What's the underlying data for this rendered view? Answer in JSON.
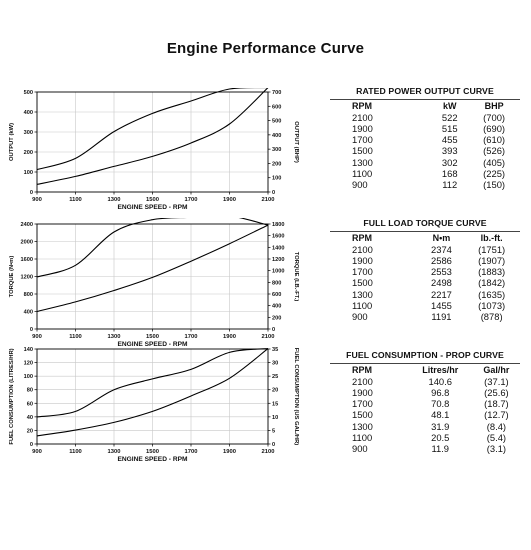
{
  "title": "Engine Performance Curve",
  "chart_data": [
    {
      "type": "line",
      "name": "output",
      "x": [
        900,
        1100,
        1300,
        1500,
        1700,
        1900,
        2100
      ],
      "xticks": [
        900,
        1100,
        1300,
        1500,
        1700,
        1900,
        2100
      ],
      "xlim": [
        900,
        2100
      ],
      "xlabel": "ENGINE SPEED - RPM",
      "ylabel": "OUTPUT (kW)",
      "ylim": [
        0,
        500
      ],
      "yticks": [
        0,
        100,
        200,
        300,
        400,
        500
      ],
      "ylabel_right": "OUTPUT (BHP)",
      "ylim_right": [
        0,
        700
      ],
      "yticks_right": [
        0,
        100,
        200,
        300,
        400,
        500,
        600,
        700
      ],
      "grid": true,
      "series": [
        {
          "values": [
            112,
            168,
            302,
            393,
            455,
            515,
            522
          ]
        },
        {
          "values": [
            38,
            78,
            128,
            178,
            245,
            340,
            522
          ]
        }
      ]
    },
    {
      "type": "line",
      "name": "torque",
      "x": [
        900,
        1100,
        1300,
        1500,
        1700,
        1900,
        2100
      ],
      "xticks": [
        900,
        1100,
        1300,
        1500,
        1700,
        1900,
        2100
      ],
      "xlim": [
        900,
        2100
      ],
      "xlabel": "ENGINE SPEED - RPM",
      "ylabel": "TORQUE (N•m)",
      "ylim": [
        0,
        2400
      ],
      "yticks": [
        0,
        400,
        800,
        1200,
        1600,
        2000,
        2400
      ],
      "ylabel_right": "TORQUE (LB.-FT.)",
      "ylim_right": [
        0,
        1800
      ],
      "yticks_right": [
        0,
        200,
        400,
        600,
        800,
        1000,
        1200,
        1400,
        1600,
        1800
      ],
      "grid": true,
      "series": [
        {
          "values": [
            1191,
            1455,
            2217,
            2498,
            2553,
            2586,
            2374
          ]
        },
        {
          "values": [
            400,
            620,
            880,
            1180,
            1550,
            1950,
            2374
          ]
        }
      ]
    },
    {
      "type": "line",
      "name": "fuel",
      "x": [
        900,
        1100,
        1300,
        1500,
        1700,
        1900,
        2100
      ],
      "xticks": [
        900,
        1100,
        1300,
        1500,
        1700,
        1900,
        2100
      ],
      "xlim": [
        900,
        2100
      ],
      "xlabel": "ENGINE SPEED - RPM",
      "ylabel": "FUEL CONSUMPTION (LITRES/HR)",
      "ylim": [
        0,
        140
      ],
      "yticks": [
        0,
        20,
        40,
        60,
        80,
        100,
        120,
        140
      ],
      "ylabel_right": "FUEL CONSUMPTION (US GAL/HR)",
      "ylim_right": [
        0,
        35
      ],
      "yticks_right": [
        0,
        5,
        10,
        15,
        20,
        25,
        30,
        35
      ],
      "grid": true,
      "series": [
        {
          "values": [
            40,
            48,
            80,
            96,
            110,
            135,
            140.6
          ]
        },
        {
          "values": [
            11.9,
            20.5,
            31.9,
            48.1,
            70.8,
            96.8,
            140.6
          ]
        }
      ]
    }
  ],
  "tables": [
    {
      "title": "RATED POWER OUTPUT CURVE",
      "headers": [
        "RPM",
        "kW",
        "BHP"
      ],
      "rows": [
        [
          "2100",
          "522",
          "(700)"
        ],
        [
          "1900",
          "515",
          "(690)"
        ],
        [
          "1700",
          "455",
          "(610)"
        ],
        [
          "1500",
          "393",
          "(526)"
        ],
        [
          "1300",
          "302",
          "(405)"
        ],
        [
          "1100",
          "168",
          "(225)"
        ],
        [
          "900",
          "112",
          "(150)"
        ]
      ]
    },
    {
      "title": "FULL LOAD TORQUE CURVE",
      "headers": [
        "RPM",
        "N•m",
        "lb.-ft."
      ],
      "rows": [
        [
          "2100",
          "2374",
          "(1751)"
        ],
        [
          "1900",
          "2586",
          "(1907)"
        ],
        [
          "1700",
          "2553",
          "(1883)"
        ],
        [
          "1500",
          "2498",
          "(1842)"
        ],
        [
          "1300",
          "2217",
          "(1635)"
        ],
        [
          "1100",
          "1455",
          "(1073)"
        ],
        [
          "900",
          "1191",
          "(878)"
        ]
      ]
    },
    {
      "title": "FUEL CONSUMPTION - PROP CURVE",
      "headers": [
        "RPM",
        "Litres/hr",
        "Gal/hr"
      ],
      "rows": [
        [
          "2100",
          "140.6",
          "(37.1)"
        ],
        [
          "1900",
          "96.8",
          "(25.6)"
        ],
        [
          "1700",
          "70.8",
          "(18.7)"
        ],
        [
          "1500",
          "48.1",
          "(12.7)"
        ],
        [
          "1300",
          "31.9",
          "(8.4)"
        ],
        [
          "1100",
          "20.5",
          "(5.4)"
        ],
        [
          "900",
          "11.9",
          "(3.1)"
        ]
      ]
    }
  ]
}
